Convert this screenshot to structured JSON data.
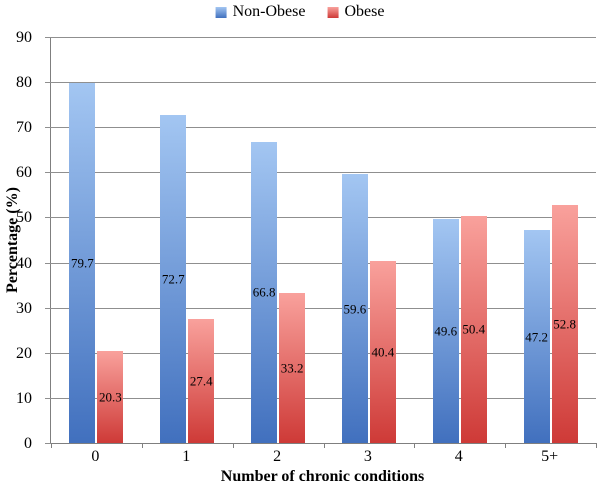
{
  "chart_data": {
    "type": "bar",
    "title": "",
    "categories": [
      "0",
      "1",
      "2",
      "3",
      "4",
      "5+"
    ],
    "series": [
      {
        "name": "Non-Obese",
        "values": [
          79.7,
          72.7,
          66.8,
          59.6,
          49.6,
          47.2
        ],
        "color_top": "#A3C6F2",
        "color_bottom": "#4170BE"
      },
      {
        "name": "Obese",
        "values": [
          20.3,
          27.4,
          33.2,
          40.4,
          50.4,
          52.8
        ],
        "color_top": "#F9A19C",
        "color_bottom": "#CE3A37"
      }
    ],
    "xlabel": "Number of chronic conditions",
    "ylabel": "Percentage (%)",
    "ylim": [
      0,
      90
    ],
    "yticks": [
      0,
      10,
      20,
      30,
      40,
      50,
      60,
      70,
      80,
      90
    ],
    "grid": true,
    "legend_position": "top-center",
    "data_label_position": "inside-center",
    "data_label_format": "one-decimal"
  },
  "colors": {
    "background": "#FFFFFF",
    "gridline": "#8F8F8F",
    "axis_line": "#7F7F7F",
    "label_text": "#000000"
  }
}
